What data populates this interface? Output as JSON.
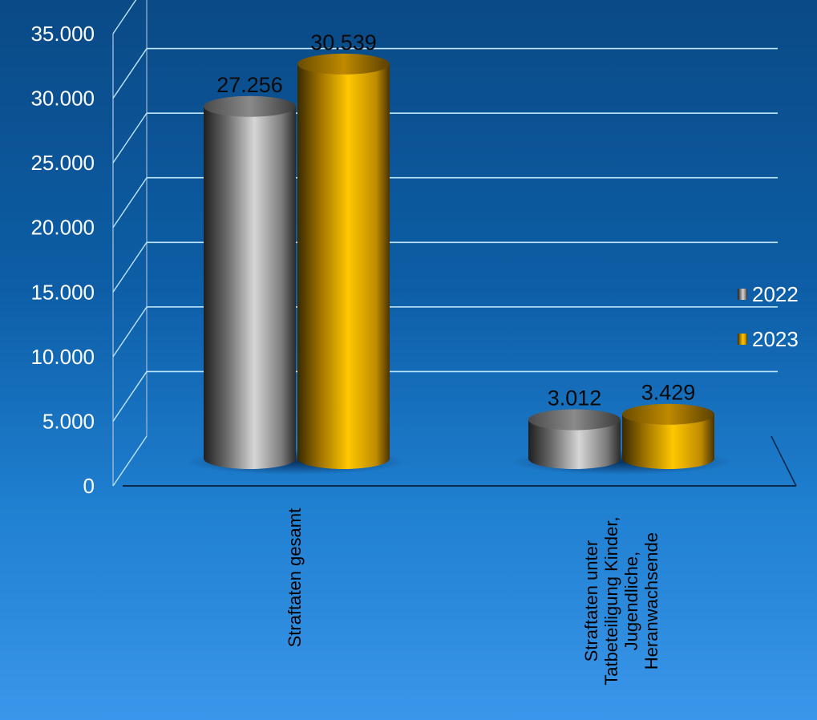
{
  "chart_data": {
    "type": "bar",
    "categories": [
      [
        "Straftaten gesamt"
      ],
      [
        "Straftaten unter",
        "Tatbeteiligung Kinder,",
        "Jugendliche,",
        "Heranwachsende"
      ]
    ],
    "series": [
      {
        "name": "2022",
        "values": [
          27256,
          3012
        ],
        "labels": [
          "27.256",
          "3.012"
        ],
        "color": "#b0b0b0"
      },
      {
        "name": "2023",
        "values": [
          30539,
          3429
        ],
        "labels": [
          "30.539",
          "3.429"
        ],
        "color": "#ffc000"
      }
    ],
    "ylim": [
      0,
      35000
    ],
    "yticks": [
      "0",
      "5.000",
      "10.000",
      "15.000",
      "20.000",
      "25.000",
      "30.000",
      "35.000"
    ],
    "ytick_values": [
      0,
      5000,
      10000,
      15000,
      20000,
      25000,
      30000,
      35000
    ],
    "legend_position": "right",
    "grid": true
  }
}
